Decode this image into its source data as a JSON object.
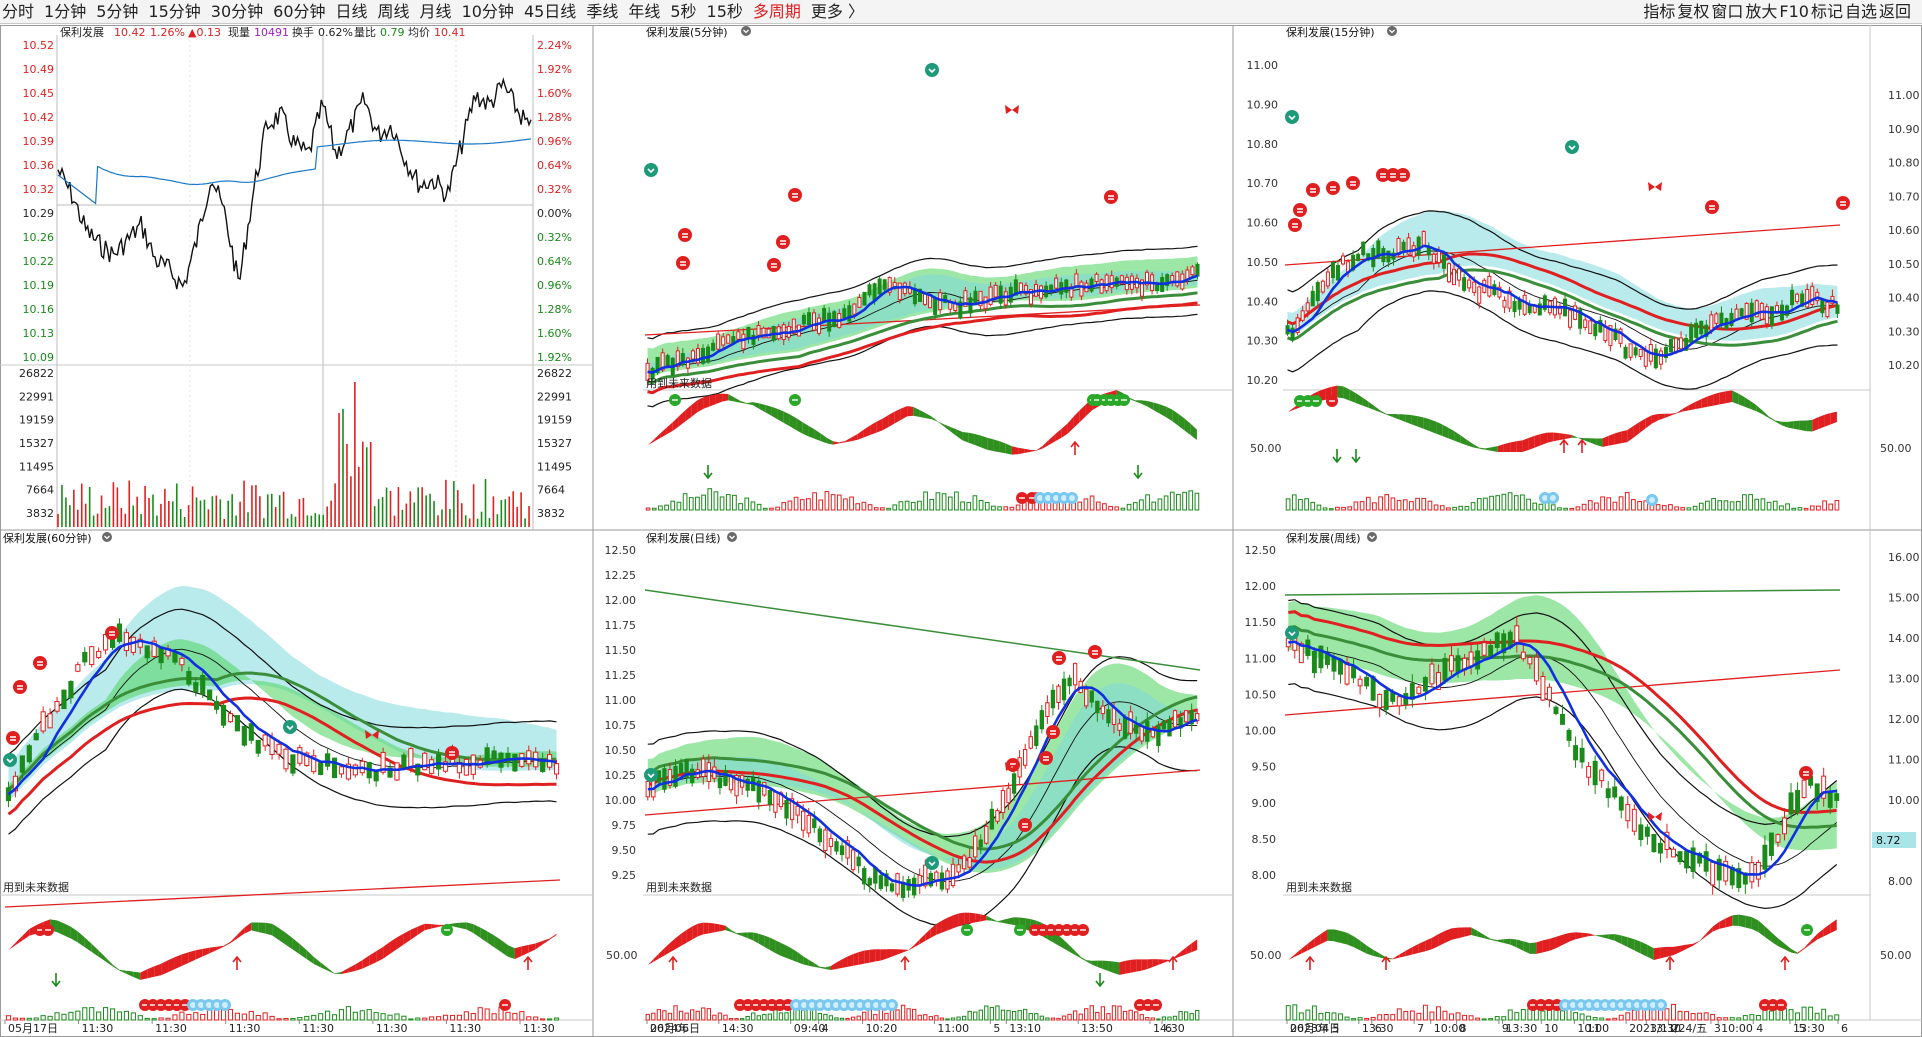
{
  "toolbar": {
    "tabs": [
      "分时",
      "1分钟",
      "5分钟",
      "15分钟",
      "30分钟",
      "60分钟",
      "日线",
      "周线",
      "月线",
      "10分钟",
      "45日线",
      "季线",
      "年线",
      "5秒",
      "15秒",
      "多周期",
      "更多 〉"
    ],
    "active_tab": "多周期",
    "right_tools": [
      "指标",
      "复权",
      "窗口",
      "放大",
      "F10",
      "标记",
      "自选",
      "返回"
    ]
  },
  "colors": {
    "up": "#e02020",
    "down": "#1a8a1a",
    "blue": "#1030e0",
    "band_green": "#4cd45c",
    "band_cyan": "#80d8dc",
    "black": "#111111"
  },
  "panels": {
    "intraday": {
      "name": "保利发展",
      "quote": {
        "price": "10.42",
        "pct": "1.26%",
        "change": "▲0.13",
        "vol_label": "现量",
        "vol": "10491",
        "turnover_label": "换手",
        "turnover": "0.62%",
        "ratio_label": "量比",
        "ratio": "0.79",
        "avg_label": "均价",
        "avg": "10.41"
      },
      "price_ticks": [
        "10.52",
        "10.49",
        "10.45",
        "10.42",
        "10.39",
        "10.36",
        "10.32",
        "10.29",
        "10.26",
        "10.22",
        "10.19",
        "10.16",
        "10.13",
        "10.09"
      ],
      "pct_ticks": [
        "2.24%",
        "1.92%",
        "1.60%",
        "1.28%",
        "0.96%",
        "0.64%",
        "0.32%",
        "0.00%",
        "0.32%",
        "0.64%",
        "0.96%",
        "1.28%",
        "1.60%",
        "1.92%"
      ],
      "vol_ticks": [
        "26822",
        "22991",
        "19159",
        "15327",
        "11495",
        "7664",
        "3832"
      ]
    },
    "m5": {
      "title": "保利发展(5分钟)",
      "future_label": "用到未来数据",
      "x_labels": [
        "06月06日",
        "14:30",
        "09:40",
        "10:20",
        "11:00",
        "13:10",
        "13:50",
        "14:30"
      ]
    },
    "m15": {
      "title": "保利发展(15分钟)",
      "price_ticks": [
        "11.00",
        "10.90",
        "10.80",
        "10.70",
        "10.60",
        "10.50",
        "10.40",
        "10.30",
        "10.20"
      ],
      "right_ticks": [
        "11.00",
        "10.90",
        "10.80",
        "10.70",
        "10.60",
        "10.50",
        "10.40",
        "10.30",
        "10.20"
      ],
      "osc_tick": "50.00",
      "x_labels": [
        "06月04日",
        "13:30",
        "10:00",
        "13:30",
        "10:00",
        "13:30",
        "10:00",
        "13:30"
      ]
    },
    "m60": {
      "title": "保利发展(60分钟)",
      "future_label": "用到未来数据",
      "x_labels": [
        "05月17日",
        "11:30",
        "11:30",
        "11:30",
        "11:30",
        "11:30",
        "11:30",
        "11:30"
      ]
    },
    "daily": {
      "title": "保利发展(日线)",
      "future_label": "用到未来数据",
      "price_ticks": [
        "12.50",
        "12.25",
        "12.00",
        "11.75",
        "11.50",
        "11.25",
        "11.00",
        "10.75",
        "10.50",
        "10.25",
        "10.00",
        "9.75",
        "9.50",
        "9.25"
      ],
      "osc_tick": "50.00",
      "x_labels": [
        "2024年",
        "4",
        "5",
        "6"
      ]
    },
    "weekly": {
      "title": "保利发展(周线)",
      "future_label": "用到未来数据",
      "price_ticks": [
        "12.50",
        "12.00",
        "11.50",
        "11.00",
        "10.50",
        "10.00",
        "9.50",
        "9.00",
        "8.50",
        "8.00"
      ],
      "right_ticks": [
        "16.00",
        "15.00",
        "14.00",
        "13.00",
        "12.00",
        "11.00",
        "10.00",
        "9.00",
        "8.00"
      ],
      "right_box": "8.72",
      "osc_tick": "50.00",
      "x_labels": [
        "2023年",
        "5",
        "6",
        "7",
        "8",
        "9",
        "10",
        "11",
        "2023/11/24/五",
        "2",
        "3",
        "4",
        "5",
        "6"
      ]
    }
  }
}
